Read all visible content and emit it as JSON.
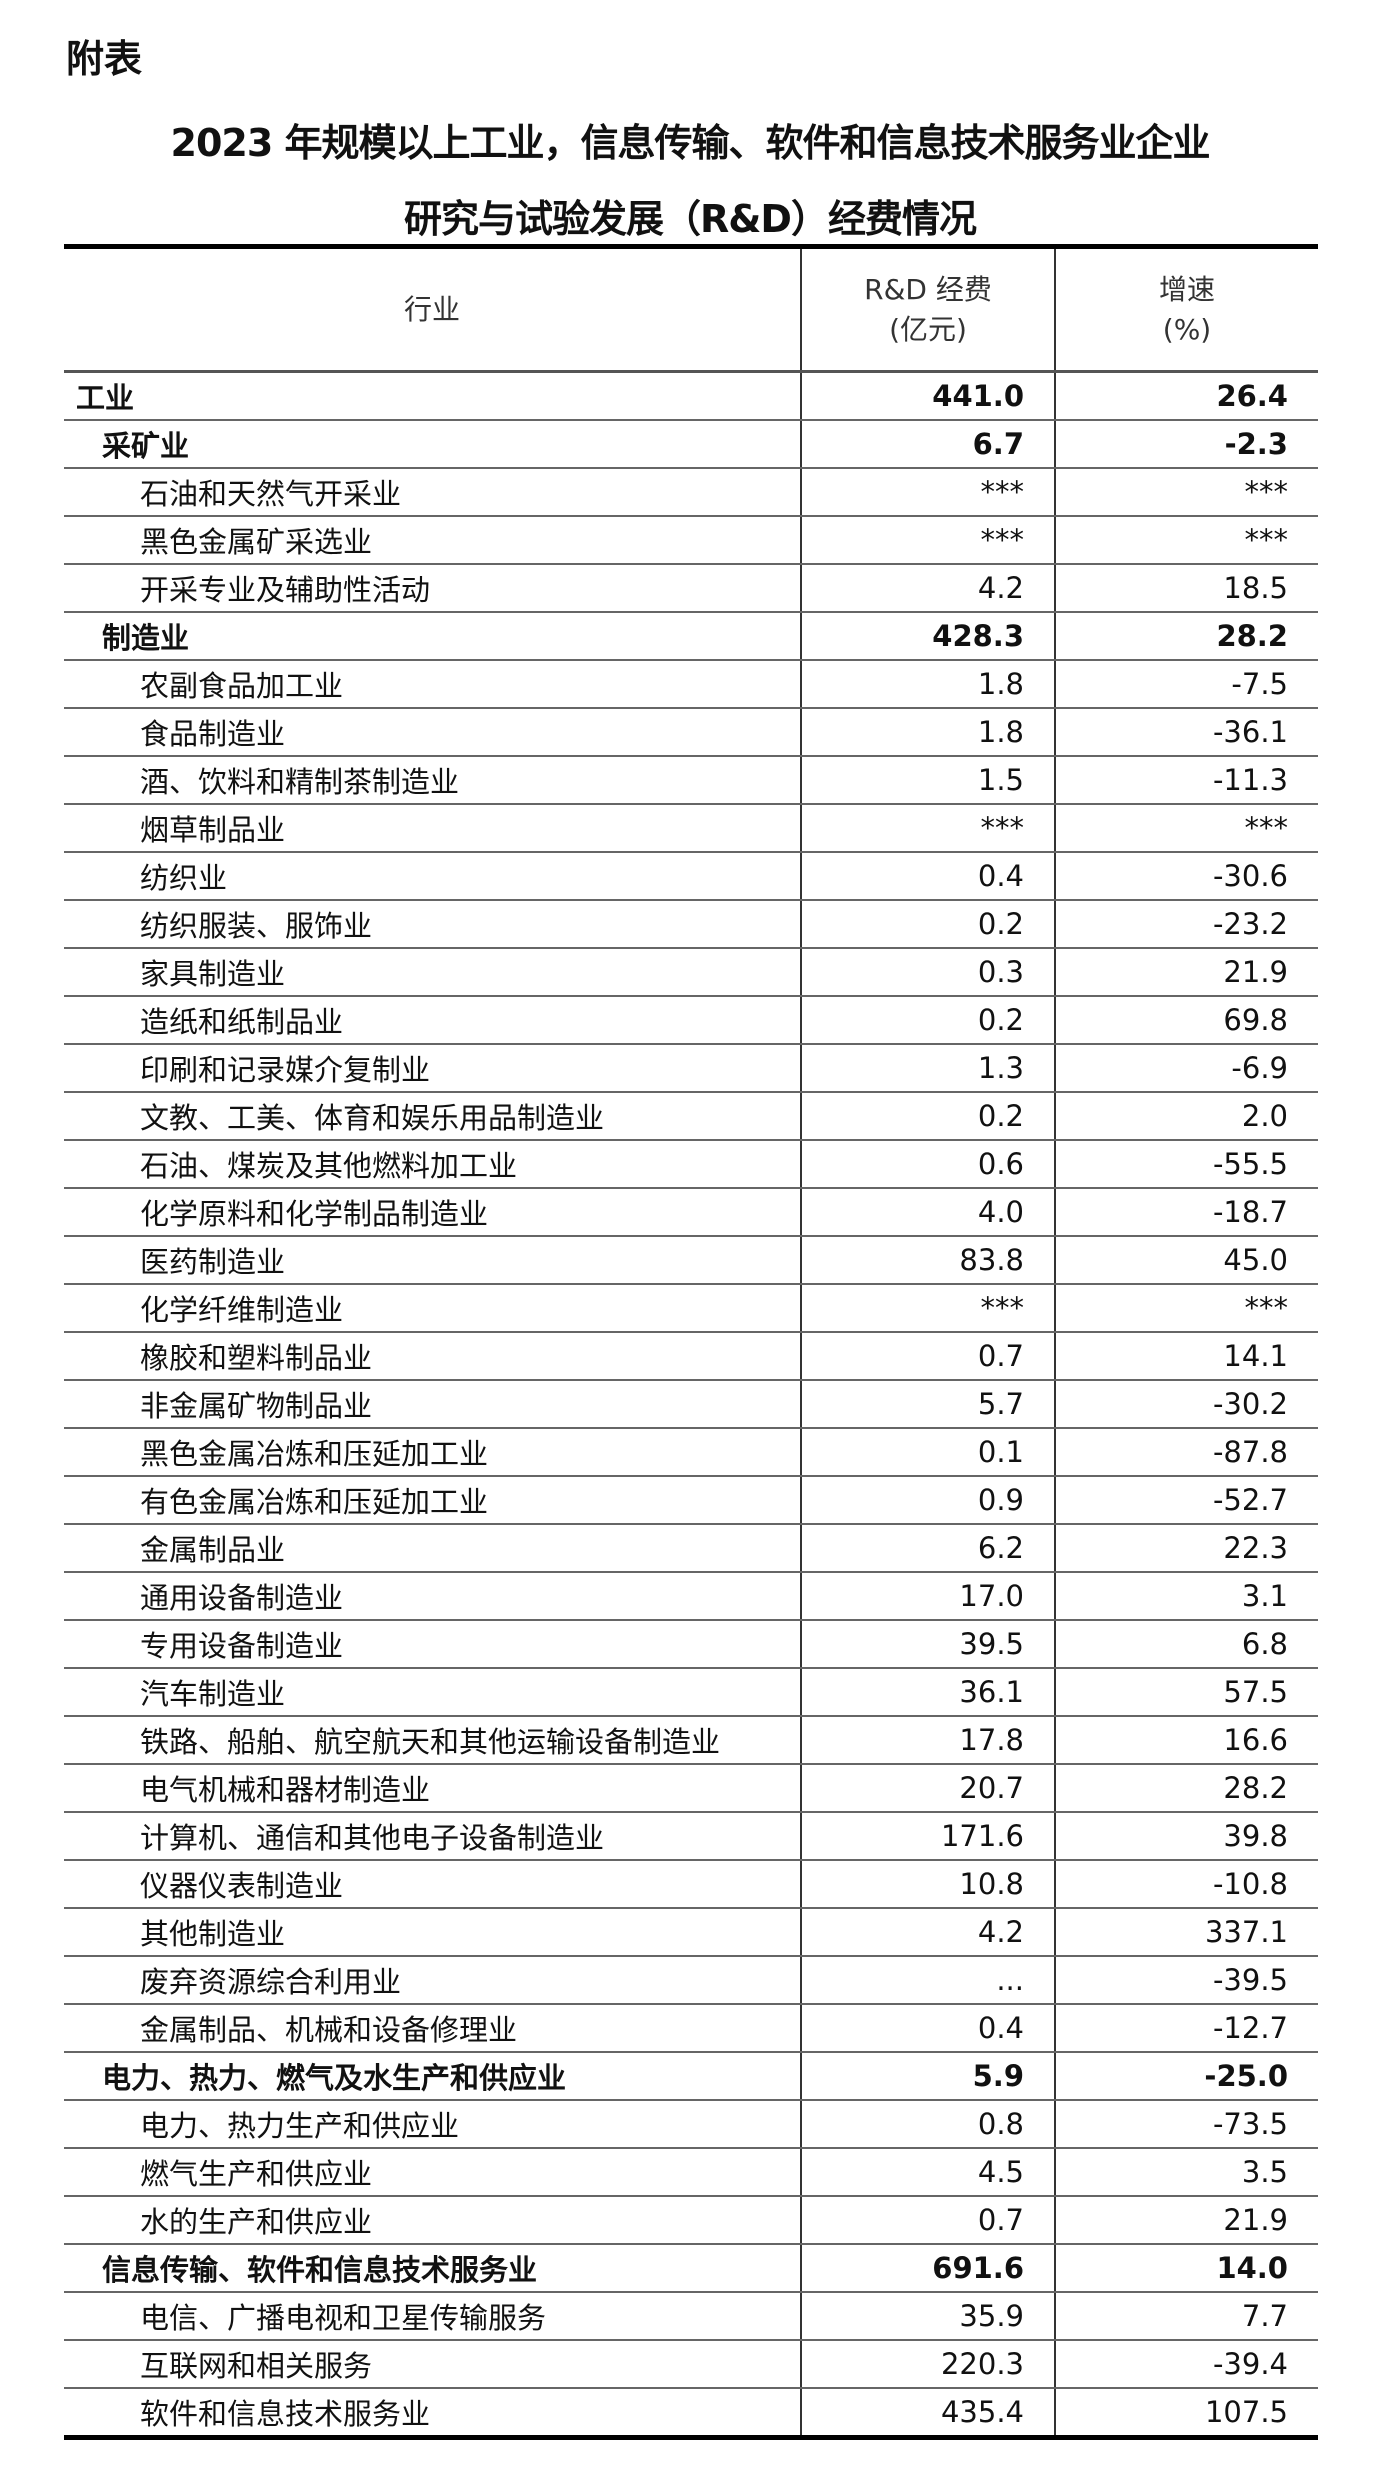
{
  "label": "附表",
  "title_line1": "2023 年规模以上工业，信息传输、软件和信息技术服务业企业",
  "title_line2": "研究与试验发展（R&D）经费情况",
  "columns": {
    "industry": "行业",
    "rd_line1": "R&D 经费",
    "rd_line2": "(亿元)",
    "growth_line1": "增速",
    "growth_line2": "(%)"
  },
  "rows": [
    {
      "name": "工业",
      "rd": "441.0",
      "growth": "26.4",
      "level": 0
    },
    {
      "name": "采矿业",
      "rd": "6.7",
      "growth": "-2.3",
      "level": 1,
      "bold": true
    },
    {
      "name": "石油和天然气开采业",
      "rd": "***",
      "growth": "***",
      "level": 2
    },
    {
      "name": "黑色金属矿采选业",
      "rd": "***",
      "growth": "***",
      "level": 2
    },
    {
      "name": "开采专业及辅助性活动",
      "rd": "4.2",
      "growth": "18.5",
      "level": 2
    },
    {
      "name": "制造业",
      "rd": "428.3",
      "growth": "28.2",
      "level": 1,
      "bold": true
    },
    {
      "name": "农副食品加工业",
      "rd": "1.8",
      "growth": "-7.5",
      "level": 2
    },
    {
      "name": "食品制造业",
      "rd": "1.8",
      "growth": "-36.1",
      "level": 2
    },
    {
      "name": "酒、饮料和精制茶制造业",
      "rd": "1.5",
      "growth": "-11.3",
      "level": 2
    },
    {
      "name": "烟草制品业",
      "rd": "***",
      "growth": "***",
      "level": 2
    },
    {
      "name": "纺织业",
      "rd": "0.4",
      "growth": "-30.6",
      "level": 2
    },
    {
      "name": "纺织服装、服饰业",
      "rd": "0.2",
      "growth": "-23.2",
      "level": 2
    },
    {
      "name": "家具制造业",
      "rd": "0.3",
      "growth": "21.9",
      "level": 2
    },
    {
      "name": "造纸和纸制品业",
      "rd": "0.2",
      "growth": "69.8",
      "level": 2
    },
    {
      "name": "印刷和记录媒介复制业",
      "rd": "1.3",
      "growth": "-6.9",
      "level": 2
    },
    {
      "name": "文教、工美、体育和娱乐用品制造业",
      "rd": "0.2",
      "growth": "2.0",
      "level": 2
    },
    {
      "name": "石油、煤炭及其他燃料加工业",
      "rd": "0.6",
      "growth": "-55.5",
      "level": 2
    },
    {
      "name": "化学原料和化学制品制造业",
      "rd": "4.0",
      "growth": "-18.7",
      "level": 2
    },
    {
      "name": "医药制造业",
      "rd": "83.8",
      "growth": "45.0",
      "level": 2
    },
    {
      "name": "化学纤维制造业",
      "rd": "***",
      "growth": "***",
      "level": 2
    },
    {
      "name": "橡胶和塑料制品业",
      "rd": "0.7",
      "growth": "14.1",
      "level": 2
    },
    {
      "name": "非金属矿物制品业",
      "rd": "5.7",
      "growth": "-30.2",
      "level": 2
    },
    {
      "name": "黑色金属冶炼和压延加工业",
      "rd": "0.1",
      "growth": "-87.8",
      "level": 2
    },
    {
      "name": "有色金属冶炼和压延加工业",
      "rd": "0.9",
      "growth": "-52.7",
      "level": 2
    },
    {
      "name": "金属制品业",
      "rd": "6.2",
      "growth": "22.3",
      "level": 2
    },
    {
      "name": "通用设备制造业",
      "rd": "17.0",
      "growth": "3.1",
      "level": 2
    },
    {
      "name": "专用设备制造业",
      "rd": "39.5",
      "growth": "6.8",
      "level": 2
    },
    {
      "name": "汽车制造业",
      "rd": "36.1",
      "growth": "57.5",
      "level": 2
    },
    {
      "name": "铁路、船舶、航空航天和其他运输设备制造业",
      "rd": "17.8",
      "growth": "16.6",
      "level": 2
    },
    {
      "name": "电气机械和器材制造业",
      "rd": "20.7",
      "growth": "28.2",
      "level": 2
    },
    {
      "name": "计算机、通信和其他电子设备制造业",
      "rd": "171.6",
      "growth": "39.8",
      "level": 2
    },
    {
      "name": "仪器仪表制造业",
      "rd": "10.8",
      "growth": "-10.8",
      "level": 2
    },
    {
      "name": "其他制造业",
      "rd": "4.2",
      "growth": "337.1",
      "level": 2
    },
    {
      "name": "废弃资源综合利用业",
      "rd": "...",
      "growth": "-39.5",
      "level": 2
    },
    {
      "name": "金属制品、机械和设备修理业",
      "rd": "0.4",
      "growth": "-12.7",
      "level": 2
    },
    {
      "name": "电力、热力、燃气及水生产和供应业",
      "rd": "5.9",
      "growth": "-25.0",
      "level": 1,
      "bold": true
    },
    {
      "name": "电力、热力生产和供应业",
      "rd": "0.8",
      "growth": "-73.5",
      "level": 2
    },
    {
      "name": "燃气生产和供应业",
      "rd": "4.5",
      "growth": "3.5",
      "level": 2
    },
    {
      "name": "水的生产和供应业",
      "rd": "0.7",
      "growth": "21.9",
      "level": 2
    },
    {
      "name": "信息传输、软件和信息技术服务业",
      "rd": "691.6",
      "growth": "14.0",
      "level": 1,
      "bold": true
    },
    {
      "name": "电信、广播电视和卫星传输服务",
      "rd": "35.9",
      "growth": "7.7",
      "level": 2
    },
    {
      "name": "互联网和相关服务",
      "rd": "220.3",
      "growth": "-39.4",
      "level": 2
    },
    {
      "name": "软件和信息技术服务业",
      "rd": "435.4",
      "growth": "107.5",
      "level": 2
    }
  ]
}
